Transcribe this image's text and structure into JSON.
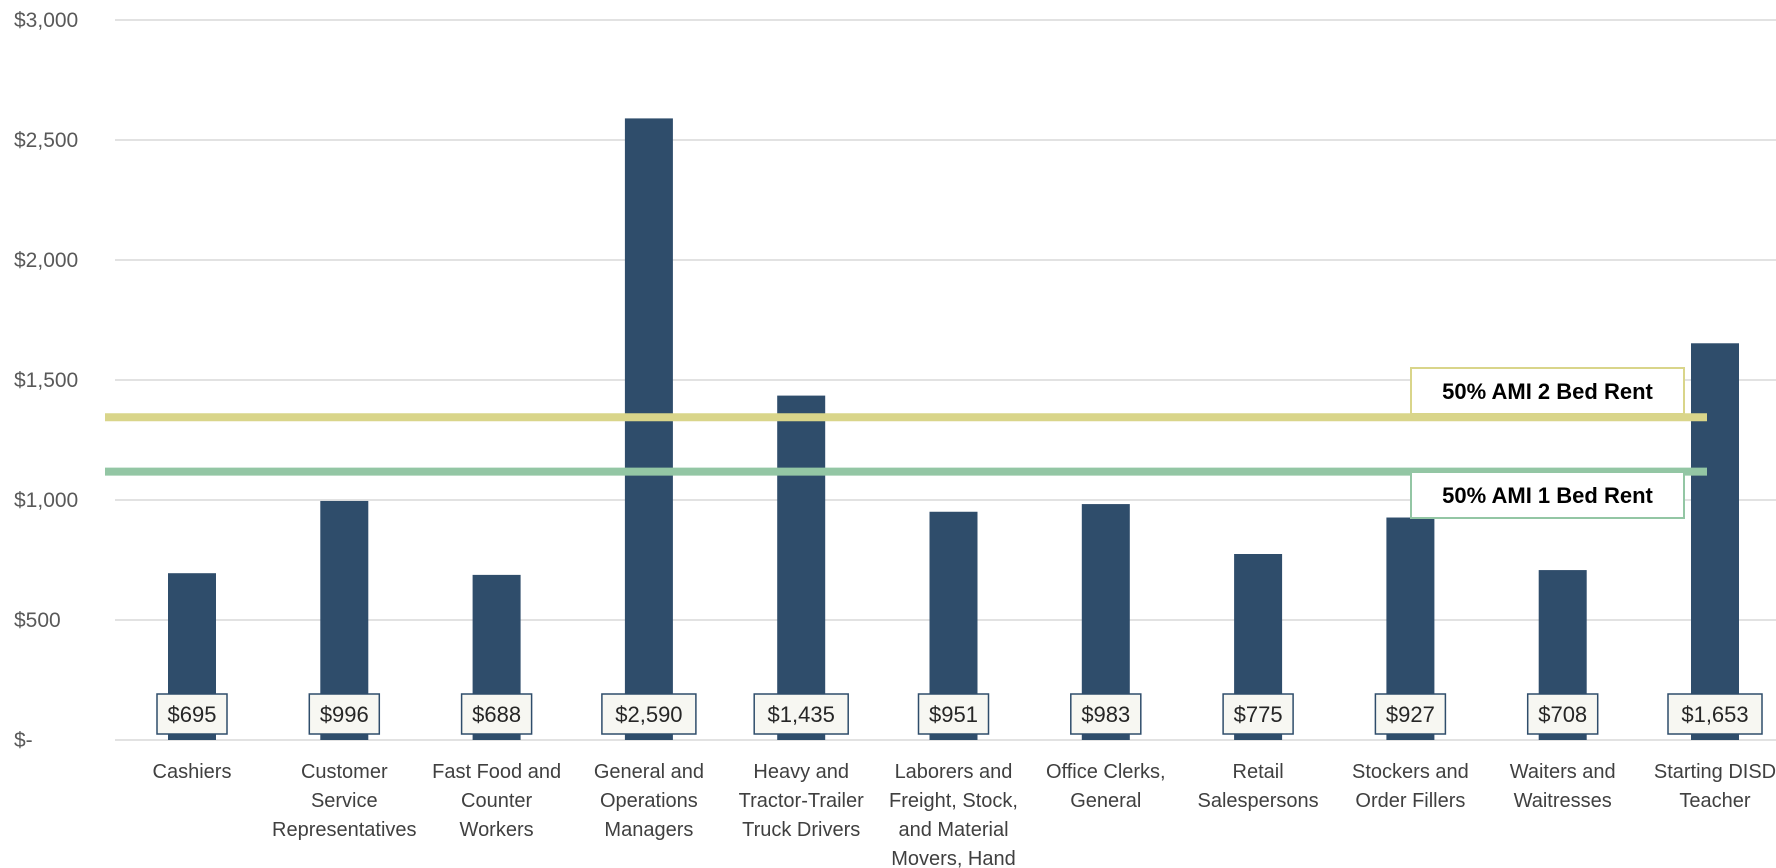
{
  "chart_data": {
    "type": "bar",
    "title": "",
    "xlabel": "",
    "ylabel": "",
    "ylim": [
      0,
      3000
    ],
    "yticks": [
      0,
      500,
      1000,
      1500,
      2000,
      2500,
      3000
    ],
    "ytick_labels": [
      "$-",
      "$500",
      "$1,000",
      "$1,500",
      "$2,000",
      "$2,500",
      "$3,000"
    ],
    "grid": true,
    "categories": [
      "Cashiers",
      "Customer Service Representatives",
      "Fast Food and Counter Workers",
      "General and Operations Managers",
      "Heavy and Tractor-Trailer Truck Drivers",
      "Laborers and Freight, Stock, and Material Movers, Hand",
      "Office Clerks, General",
      "Retail Salespersons",
      "Stockers and Order Fillers",
      "Waiters and Waitresses",
      "Starting DISD Teacher"
    ],
    "category_lines": [
      [
        "Cashiers"
      ],
      [
        "Customer",
        "Service",
        "Representatives"
      ],
      [
        "Fast Food and",
        "Counter",
        "Workers"
      ],
      [
        "General and",
        "Operations",
        "Managers"
      ],
      [
        "Heavy and",
        "Tractor-Trailer",
        "Truck Drivers"
      ],
      [
        "Laborers and",
        "Freight, Stock,",
        "and Material",
        "Movers, Hand"
      ],
      [
        "Office Clerks,",
        "General"
      ],
      [
        "Retail",
        "Salespersons"
      ],
      [
        "Stockers and",
        "Order Fillers"
      ],
      [
        "Waiters and",
        "Waitresses"
      ],
      [
        "Starting DISD",
        "Teacher"
      ]
    ],
    "values": [
      695,
      996,
      688,
      2590,
      1435,
      951,
      983,
      775,
      927,
      708,
      1653
    ],
    "value_labels": [
      "$695",
      "$996",
      "$688",
      "$2,590",
      "$1,435",
      "$951",
      "$983",
      "$775",
      "$927",
      "$708",
      "$1,653"
    ],
    "reference_lines": [
      {
        "label": "50% AMI 2 Bed Rent",
        "value": 1345,
        "color": "#d9d58a"
      },
      {
        "label": "50% AMI 1 Bed Rent",
        "value": 1118,
        "color": "#93c6a4"
      }
    ],
    "colors": {
      "bar": "#2f4d6b",
      "grid": "#d9d9d9",
      "label_box_fill": "#f7f7f2",
      "label_box_stroke": "#2f4d6b"
    }
  }
}
